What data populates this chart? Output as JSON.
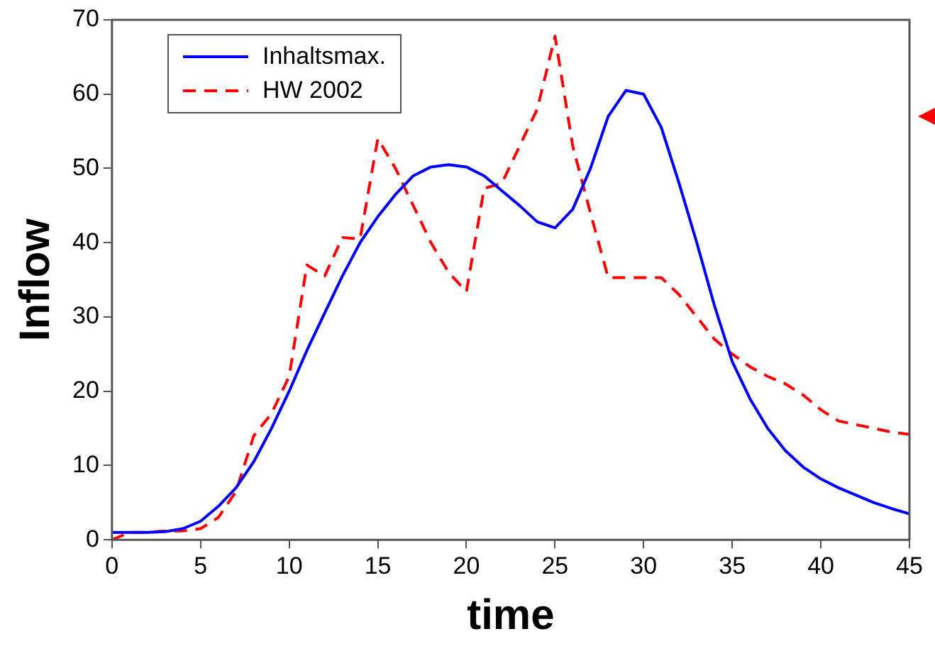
{
  "chart_data": {
    "type": "line",
    "xlabel": "time",
    "ylabel": "Inflow",
    "x": [
      0,
      1,
      2,
      3,
      4,
      5,
      6,
      7,
      8,
      9,
      10,
      11,
      12,
      13,
      14,
      15,
      16,
      17,
      18,
      19,
      20,
      21,
      22,
      23,
      24,
      25,
      26,
      27,
      28,
      29,
      30,
      31,
      32,
      33,
      34,
      35,
      36,
      37,
      38,
      39,
      40,
      41,
      42,
      43,
      44,
      45
    ],
    "series": [
      {
        "name": "Inhaltsmax.",
        "color": "#0000ff",
        "line_style": "solid",
        "values": [
          1,
          1,
          1,
          1.1,
          1.5,
          2.5,
          4.5,
          7,
          10.5,
          15,
          20,
          25.5,
          30.5,
          35.5,
          40,
          43.5,
          46.5,
          49,
          50.2,
          50.5,
          50.2,
          49,
          47,
          45,
          42.8,
          42,
          44.5,
          50,
          57,
          60.5,
          60,
          55.5,
          48,
          40,
          31.5,
          24,
          19,
          15,
          12,
          9.8,
          8.2,
          7,
          6,
          5,
          4.2,
          3.5
        ]
      },
      {
        "name": "HW 2002",
        "color": "#ff0000",
        "line_style": "dashed",
        "values": [
          0,
          1,
          1,
          1.2,
          1.2,
          1.5,
          3,
          6.5,
          14,
          17,
          22,
          37,
          35.5,
          40.7,
          40.5,
          54,
          50,
          45,
          40,
          36,
          33.4,
          47.3,
          48,
          53,
          58,
          67.8,
          53,
          44,
          35.3,
          35.3,
          35.3,
          35.3,
          33,
          30,
          27,
          25,
          23.3,
          22,
          21,
          19.5,
          17.5,
          16,
          15.5,
          15,
          14.5,
          14.2
        ]
      }
    ],
    "xlim": [
      0,
      45
    ],
    "xticks": [
      0,
      5,
      10,
      15,
      20,
      25,
      30,
      35,
      40,
      45
    ],
    "ylim": [
      0,
      70
    ],
    "yticks": [
      0,
      10,
      20,
      30,
      40,
      50,
      60,
      70
    ],
    "grid": false,
    "legend": "top left",
    "marker": "none"
  }
}
